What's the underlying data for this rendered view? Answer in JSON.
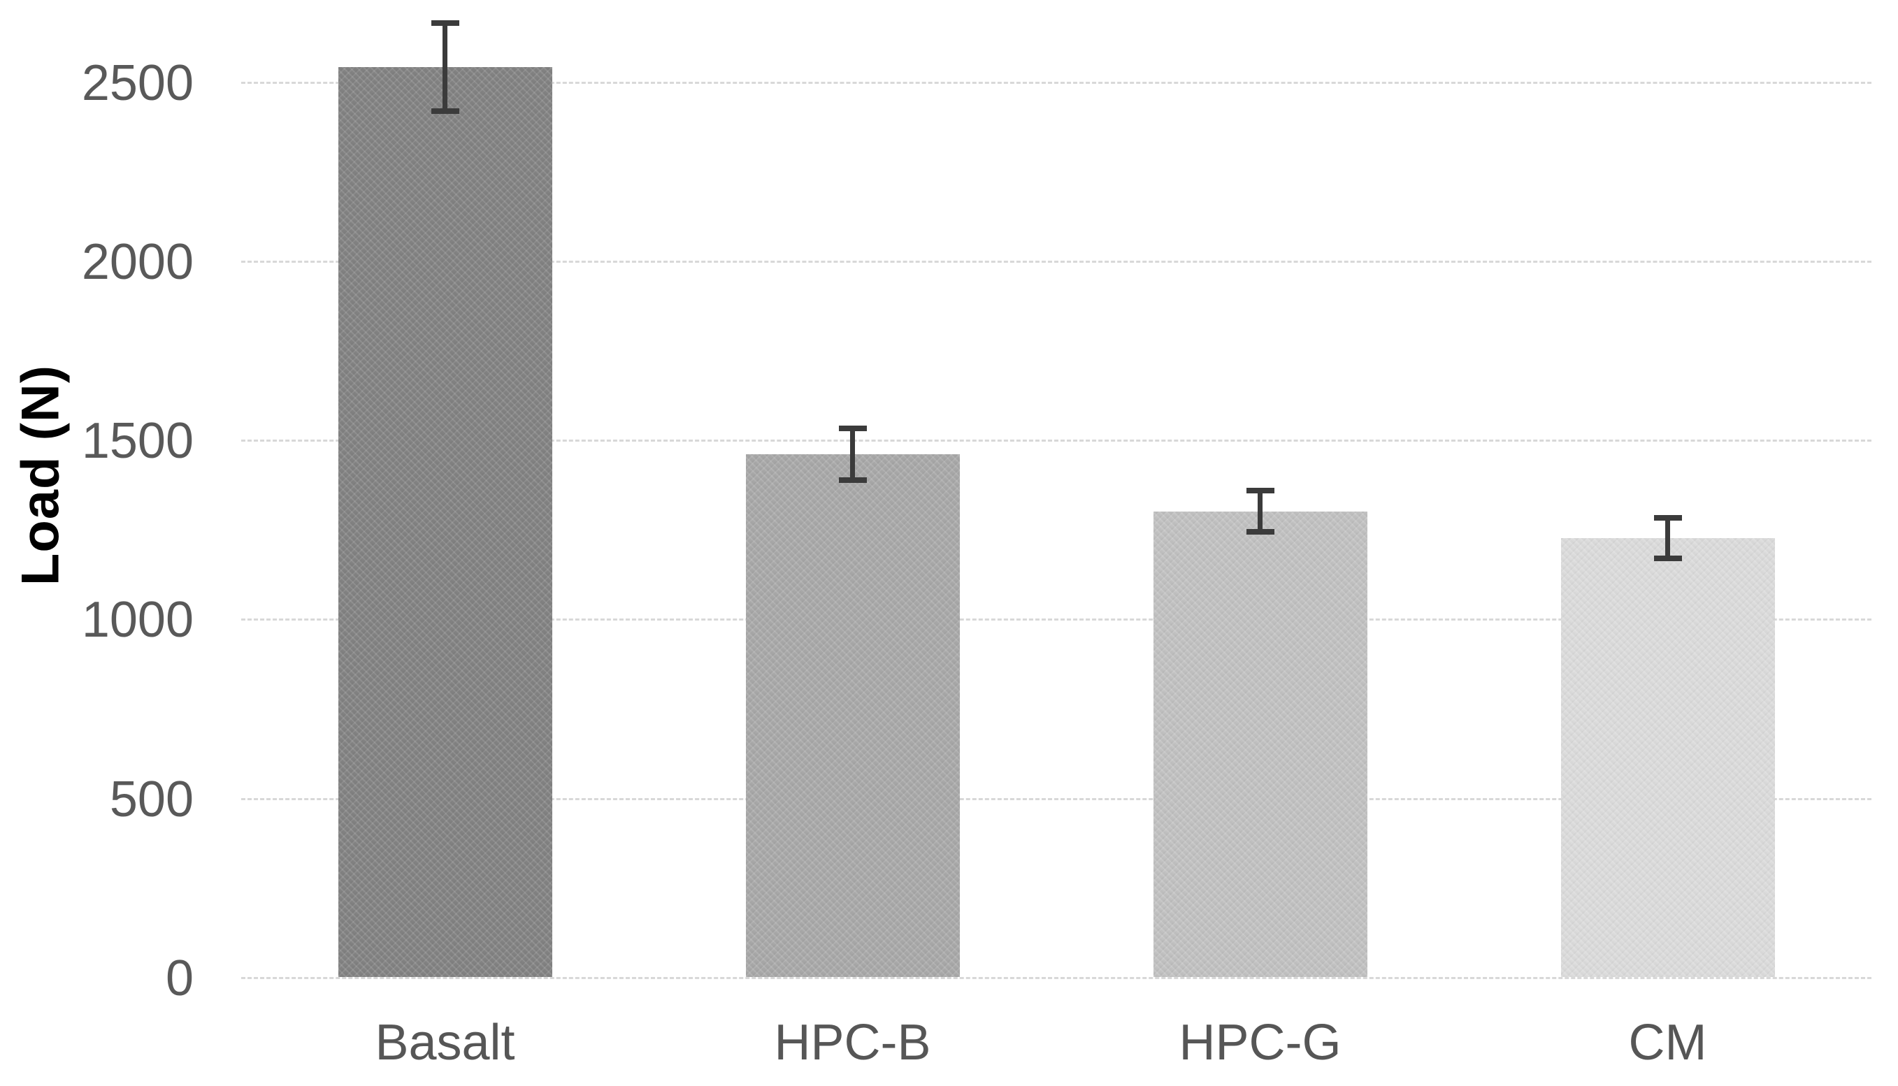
{
  "chart_data": {
    "type": "bar",
    "title": "",
    "categories": [
      "Basalt",
      "HPC-B",
      "HPC-G",
      "CM"
    ],
    "values": [
      2540,
      1460,
      1300,
      1225
    ],
    "error_bars_plus": [
      130,
      80,
      65,
      65
    ],
    "error_bars_minus": [
      130,
      80,
      65,
      65
    ],
    "xlabel": "",
    "ylabel": "Load (N)",
    "ylim": [
      0,
      2700
    ],
    "yticks": [
      0,
      500,
      1000,
      1500,
      2000,
      2500
    ],
    "ytick_labels": [
      "0",
      "500",
      "1000",
      "1500",
      "2000",
      "2500"
    ],
    "grid": "horizontal, dashed, light-gray",
    "legend": "none",
    "bar_colors": [
      "#828282",
      "#a8a8a8",
      "#c1c1c1",
      "#dbdbdb"
    ],
    "gridline_color": "#d8d8d8",
    "error_bar_color": "#3b3b3b",
    "tick_label_color": "#595959",
    "category_label_color": "#565656",
    "axis_title_color": "#000000",
    "background_color": "#ffffff"
  }
}
